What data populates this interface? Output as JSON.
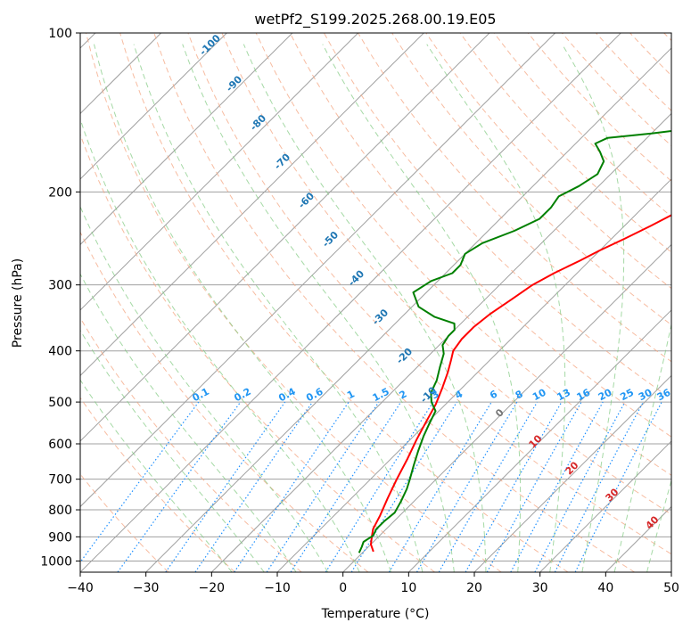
{
  "chart_data": {
    "type": "line",
    "title": "wetPf2_S199.2025.268.00.19.E05",
    "xlabel": "Temperature (°C)",
    "ylabel": "Pressure (hPa)",
    "xlim": [
      -40,
      50
    ],
    "ylim": [
      1050,
      100
    ],
    "y_scale": "log",
    "x_ticks": [
      -40,
      -30,
      -20,
      -10,
      0,
      10,
      20,
      30,
      40,
      50
    ],
    "x_tick_labels": [
      "−40",
      "−30",
      "−20",
      "−10",
      "0",
      "10",
      "20",
      "30",
      "40",
      "50"
    ],
    "y_ticks": [
      100,
      200,
      300,
      400,
      500,
      600,
      700,
      800,
      900,
      1000
    ],
    "y_tick_labels": [
      "100",
      "200",
      "300",
      "400",
      "500",
      "600",
      "700",
      "800",
      "900",
      "1000"
    ],
    "grid": true,
    "skew": 35,
    "series": [
      {
        "color": "#ff0000",
        "points": [
          [
            1.5,
            960
          ],
          [
            0,
            930
          ],
          [
            -1,
            900
          ],
          [
            -2,
            870
          ],
          [
            -3,
            820
          ],
          [
            -4.5,
            760
          ],
          [
            -6,
            700
          ],
          [
            -7.5,
            640
          ],
          [
            -9,
            590
          ],
          [
            -10.3,
            545
          ],
          [
            -11.5,
            505
          ],
          [
            -13,
            470
          ],
          [
            -14.5,
            440
          ],
          [
            -16,
            415
          ],
          [
            -17,
            400
          ],
          [
            -17.5,
            380
          ],
          [
            -17.5,
            360
          ],
          [
            -17,
            340
          ],
          [
            -16,
            320
          ],
          [
            -15,
            300
          ],
          [
            -13.5,
            285
          ],
          [
            -11.5,
            270
          ],
          [
            -10,
            258
          ],
          [
            -8,
            245
          ],
          [
            -6,
            232
          ],
          [
            -4,
            218
          ],
          [
            -1.5,
            205
          ],
          [
            2,
            192
          ],
          [
            6,
            180
          ],
          [
            11,
            167
          ],
          [
            16,
            155
          ],
          [
            22,
            143
          ],
          [
            28,
            133
          ],
          [
            33,
            125
          ],
          [
            38,
            118
          ],
          [
            43,
            111
          ],
          [
            47,
            105
          ],
          [
            49,
            100
          ]
        ]
      },
      {
        "color": "#008000",
        "points": [
          [
            -0.5,
            965
          ],
          [
            -1,
            940
          ],
          [
            -1.5,
            920
          ],
          [
            -1,
            895
          ],
          [
            -1.5,
            870
          ],
          [
            -1.5,
            840
          ],
          [
            -1.2,
            810
          ],
          [
            -2,
            770
          ],
          [
            -3,
            730
          ],
          [
            -4,
            700
          ],
          [
            -5.5,
            660
          ],
          [
            -7,
            620
          ],
          [
            -8.5,
            580
          ],
          [
            -9.5,
            550
          ],
          [
            -10.5,
            520
          ],
          [
            -12.5,
            500
          ],
          [
            -14,
            480
          ],
          [
            -15,
            455
          ],
          [
            -16.5,
            430
          ],
          [
            -18,
            405
          ],
          [
            -19.5,
            390
          ],
          [
            -20,
            375
          ],
          [
            -20,
            365
          ],
          [
            -21,
            355
          ],
          [
            -25,
            345
          ],
          [
            -29,
            330
          ],
          [
            -32,
            310
          ],
          [
            -31,
            295
          ],
          [
            -29,
            285
          ],
          [
            -29,
            275
          ],
          [
            -30,
            262
          ],
          [
            -29,
            250
          ],
          [
            -26,
            237
          ],
          [
            -24,
            225
          ],
          [
            -24,
            214
          ],
          [
            -24.5,
            204
          ],
          [
            -23,
            195
          ],
          [
            -22,
            185
          ],
          [
            -23,
            175
          ],
          [
            -25,
            168
          ],
          [
            -27,
            162
          ],
          [
            -26,
            158
          ],
          [
            -20,
            155
          ],
          [
            -12,
            150
          ],
          [
            -6,
            143
          ],
          [
            -3,
            133
          ],
          [
            0,
            125
          ],
          [
            2,
            116
          ],
          [
            5,
            108
          ],
          [
            7,
            100
          ]
        ]
      }
    ],
    "dry_adiabat_labels": [
      "-100",
      "-90",
      "-80",
      "-70",
      "-60",
      "-50",
      "-40",
      "-30",
      "-20",
      "-10"
    ],
    "moist_adiabat_labels": [
      "0",
      "10",
      "20",
      "30",
      "40"
    ],
    "mixing_ratio_labels": [
      "0.1",
      "0.2",
      "0.4",
      "0.6",
      "1",
      "1.5",
      "2",
      "3",
      "4",
      "6",
      "8",
      "10",
      "13",
      "16",
      "20",
      "25",
      "30",
      "36"
    ],
    "colors": {
      "temperature": "#ff0000",
      "dewpoint": "#008000",
      "dry_adiabat": "#f4a582",
      "moist_adiabat": "#7fc97f",
      "mixing_ratio": "#1e90ff",
      "isotherm": "#a0a0a0",
      "dry_label": "#1f77b4",
      "moist_label": "#d62728",
      "mixing_label": "#2196f3"
    }
  }
}
